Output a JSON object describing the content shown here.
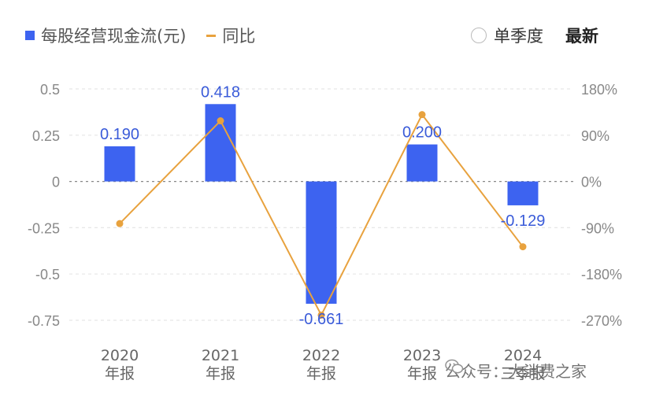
{
  "legend": {
    "bar_label": "每股经营现金流(元)",
    "line_label": "同比"
  },
  "controls": {
    "season_label": "单季度",
    "latest_label": "最新"
  },
  "colors": {
    "bar": "#3d63f0",
    "line": "#e8a23e",
    "grid": "#e6e6e6",
    "zero": "#888888",
    "tick": "#888888",
    "label": "#3a5bd9"
  },
  "watermark": {
    "text": "公众号：大消费之家",
    "icon": "wechat-icon"
  },
  "chart_data": {
    "type": "bar",
    "categories": [
      "2020\n年报",
      "2021\n年报",
      "2022\n年报",
      "2023\n年报",
      "2024\n三季报"
    ],
    "series": [
      {
        "name": "每股经营现金流(元)",
        "type": "bar",
        "values": [
          0.19,
          0.418,
          -0.661,
          0.2,
          -0.129
        ],
        "labels": [
          "0.190",
          "0.418",
          "-0.661",
          "0.200",
          "-0.129"
        ],
        "axis": "left"
      },
      {
        "name": "同比",
        "type": "line",
        "values": [
          -82,
          118,
          -260,
          130,
          -127
        ],
        "axis": "right",
        "unit": "%"
      }
    ],
    "left_axis": {
      "ticks": [
        0.5,
        0.25,
        0,
        -0.25,
        -0.5,
        -0.75
      ],
      "tick_labels": [
        "0.5",
        "0.25",
        "0",
        "-0.25",
        "-0.5",
        "-0.75"
      ],
      "ylim": [
        -0.75,
        0.5
      ]
    },
    "right_axis": {
      "ticks": [
        180,
        90,
        0,
        -90,
        -180,
        -270
      ],
      "tick_labels": [
        "180%",
        "90%",
        "0%",
        "-90%",
        "-180%",
        "-270%"
      ],
      "ylim": [
        -270,
        180
      ]
    },
    "grid": true,
    "legend_position": "top-left"
  }
}
